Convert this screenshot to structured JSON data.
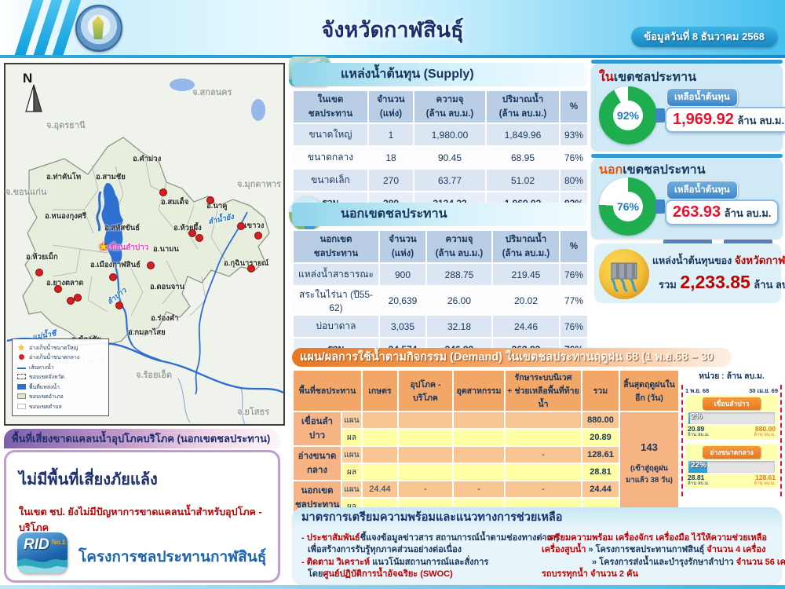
{
  "header": {
    "title": "จังหวัดกาฬสินธุ์",
    "date": "ข้อมูลวันที่ 8 ธันวาคม 2568"
  },
  "map": {
    "compass": "N",
    "provinces": [
      "จ.สกลนคร",
      "จ.อุดรธานี",
      "จ.ขอนแก่น",
      "จ.มุกดาหาร",
      "จ.มหาสารคาม",
      "จ.ร้อยเอ็ด",
      "จ.ยโสธร"
    ],
    "districts": [
      "อ.ท่าคันโท",
      "อ.สามชัย",
      "อ.คำม่วง",
      "อ.สมเด็จ",
      "อ.นาคู",
      "อ.หนองกุงศรี",
      "อ.สหัสขันธ์",
      "อ.ห้วยผึ้ง",
      "อ.เขาวง",
      "อ.ห้วยเม็ก",
      "อ.เมืองกาฬสินธ์",
      "อ.นามน",
      "อ.กุฉินารายณ์",
      "อ.ยางตลาด",
      "อ.ดอนจาน",
      "อ.ร่องคำ",
      "อ.กมลาไสย",
      "อ.ฆ้องชัย"
    ],
    "rivers": [
      "ลำน้ำยัง",
      "ลำปาว",
      "แม่น้ำชี"
    ],
    "dam": "เขื่อนลำปาว",
    "legend": [
      "อ่างเก็บน้ำขนาดใหญ่",
      "อ่างเก็บน้ำขนาดกลาง",
      "เส้นทางน้ำ",
      "ขอบเขตจังหวัด",
      "พื้นที่แหล่งน้ำ",
      "ขอบเขตอำเภอ",
      "ขอบเขตตำบล"
    ]
  },
  "risk": {
    "band": "พื้นที่เสี่ยงขาดแคลนน้ำอุปโภคบริโภค (นอกเขตชลประทาน)",
    "headline": "ไม่มีพื้นที่เสี่ยงภัยแล้ง",
    "note": "ในเขต ชป. ยังไม่มีปัญหาการขาดแคลนน้ำสำหรับอุปโภค - บริโภค",
    "logo_text": "RID",
    "logo_sub": "No.1",
    "org": "โครงการชลประทานกาฬสินธุ์"
  },
  "supply": {
    "title": "แหล่งน้ำต้นทุน (Supply)",
    "headers": [
      "ในเขต\nชลประทาน",
      "จำนวน\n(แห่ง)",
      "ความจุ\n(ล้าน ลบ.ม.)",
      "ปริมาณน้ำ\n(ล้าน ลบ.ม.)",
      "%"
    ],
    "rows": [
      [
        "ขนาดใหญ่",
        "1",
        "1,980.00",
        "1,849.96",
        "93%"
      ],
      [
        "ขนาดกลาง",
        "18",
        "90.45",
        "68.95",
        "76%"
      ],
      [
        "ขนาดเล็ก",
        "270",
        "63.77",
        "51.02",
        "80%"
      ],
      [
        "รวม",
        "289",
        "2134.22",
        "1,969.92",
        "92%"
      ]
    ]
  },
  "outside": {
    "title": "นอกเขตชลประทาน",
    "headers": [
      "นอกเขต\nชลประทาน",
      "จำนวน\n(แห่ง)",
      "ความจุ\n(ล้าน ลบ.ม.)",
      "ปริมาณน้ำ\n(ล้าน ลบ.ม.)",
      "%"
    ],
    "rows": [
      [
        "แหล่งน้ำสาธารณะ",
        "900",
        "288.75",
        "219.45",
        "76%"
      ],
      [
        "สระในไร่นา (ปี55-62)",
        "20,639",
        "26.00",
        "20.02",
        "77%"
      ],
      [
        "บ่อบาดาล",
        "3,035",
        "32.18",
        "24.46",
        "76%"
      ],
      [
        "รวม",
        "24,574",
        "346.93",
        "263.93",
        "76%"
      ]
    ]
  },
  "right_panel": {
    "in_zone": {
      "prefix": "ใน",
      "rest": "เขตชลประทาน",
      "percent": 92,
      "percent_label": "92%",
      "badge": "เหลือน้ำต้นทุน",
      "value": "1,969.92",
      "unit": "ล้าน ลบ.ม."
    },
    "out_zone": {
      "prefix": "นอก",
      "rest": "เขตชลประทาน",
      "percent": 76,
      "percent_label": "76%",
      "badge": "เหลือน้ำต้นทุน",
      "value": "263.93",
      "unit": "ล้าน ลบ.ม."
    },
    "summary": {
      "prefix": "แหล่งน้ำต้นทุนของ",
      "province": "จังหวัดกาฬสินธุ์",
      "total_label": "รวม",
      "total": "2,233.85",
      "unit": "ล้าน ลบ.ม."
    }
  },
  "demand": {
    "title": "แผน/ผลการใช้น้ำตามกิจกรรม (Demand) ในเขตชลประทานฤดูฝน 68 (1 พ.ย.68 – 30 เม.ย.69)",
    "headers": [
      "พื้นที่ชลประทาน",
      "เกษตร",
      "อุปโภค - บริโภค",
      "อุตสาหกรรม",
      "รักษาระบบนิเวศ\n+ ช่วยเหลือพื้นที่ท้ายน้ำ",
      "รวม",
      "สิ้นสุดฤดูฝนใน\nอีก (วัน)"
    ],
    "plan_label": "แผน",
    "actual_label": "ผล",
    "groups": [
      {
        "name": "เขื่อนลำปาว",
        "plan": [
          "",
          "",
          "",
          "",
          "880.00"
        ],
        "actual": [
          "",
          "",
          "",
          "",
          "20.89"
        ]
      },
      {
        "name": "อ่างขนาดกลาง",
        "plan": [
          "",
          "",
          "",
          "-",
          "128.61"
        ],
        "actual": [
          "",
          "",
          "",
          "",
          "28.81"
        ]
      },
      {
        "name": "นอกเขต\nชลประทาน",
        "plan": [
          "24.44",
          "-",
          "-",
          "-",
          "24.44"
        ],
        "actual": [
          "",
          "",
          "",
          "",
          ""
        ]
      }
    ],
    "endnote": "143",
    "endnote_sub": "(เข้าสู่ฤดูฝน\nมาแล้ว 38 วัน)"
  },
  "minichart": {
    "unit": "หน่วย : ล้าน ลบ.ม.",
    "start": "1 พ.ย. 68",
    "end": "30 เม.ย. 69",
    "bars": [
      {
        "name": "เขื่อนลำปาว",
        "pct": 2,
        "pct_label": "2%",
        "actual": "20.89",
        "actual_unit": "ล้าน ลบ.ม.",
        "plan": "880.00",
        "plan_unit": "ล้าน ลบ.ม."
      },
      {
        "name": "อ่างขนาดกลาง",
        "pct": 22,
        "pct_label": "22%",
        "actual": "28.81",
        "actual_unit": "ล้าน ลบ.ม.",
        "plan": "128.61",
        "plan_unit": "ล้าน ลบ.ม."
      }
    ]
  },
  "measures": {
    "title": "มาตรการเตรียมความพร้อมและแนวทางการช่วยเหลือ",
    "left": [
      [
        "- ประชาสัมพันธ์",
        "ชี้แจงข้อมูลข่าวสาร สถานการณ์น้ำตามช่องทางต่าง ๆ"
      ],
      [
        "เพื่อสร้างการรับรู้ทุกภาคส่วนอย่างต่อเนื่อง"
      ],
      [
        "- ติดตาม วิเคราะห์",
        " แนวโน้มสถานการณ์และสั่งการ"
      ],
      [
        "โดย",
        "ศูนย์ปฏิบัติการน้ำอัจฉริยะ (SWOC)"
      ]
    ],
    "right": [
      [
        "- เตรียมความพร้อม เครื่องจักร เครื่องมือ ไว้ให้ความช่วยเหลือ"
      ],
      [
        "เครื่องสูบน้ำ",
        " » โครงการชลประทานกาฬสินธุ์ ",
        "จำนวน 4 เครื่อง"
      ],
      [
        "» โครงการส่งน้ำและบำรุงรักษาลำปาว ",
        "จำนวน 56 เครื่อง"
      ],
      [
        "รถบรรทุกน้ำ จำนวน 2 คัน"
      ]
    ]
  }
}
